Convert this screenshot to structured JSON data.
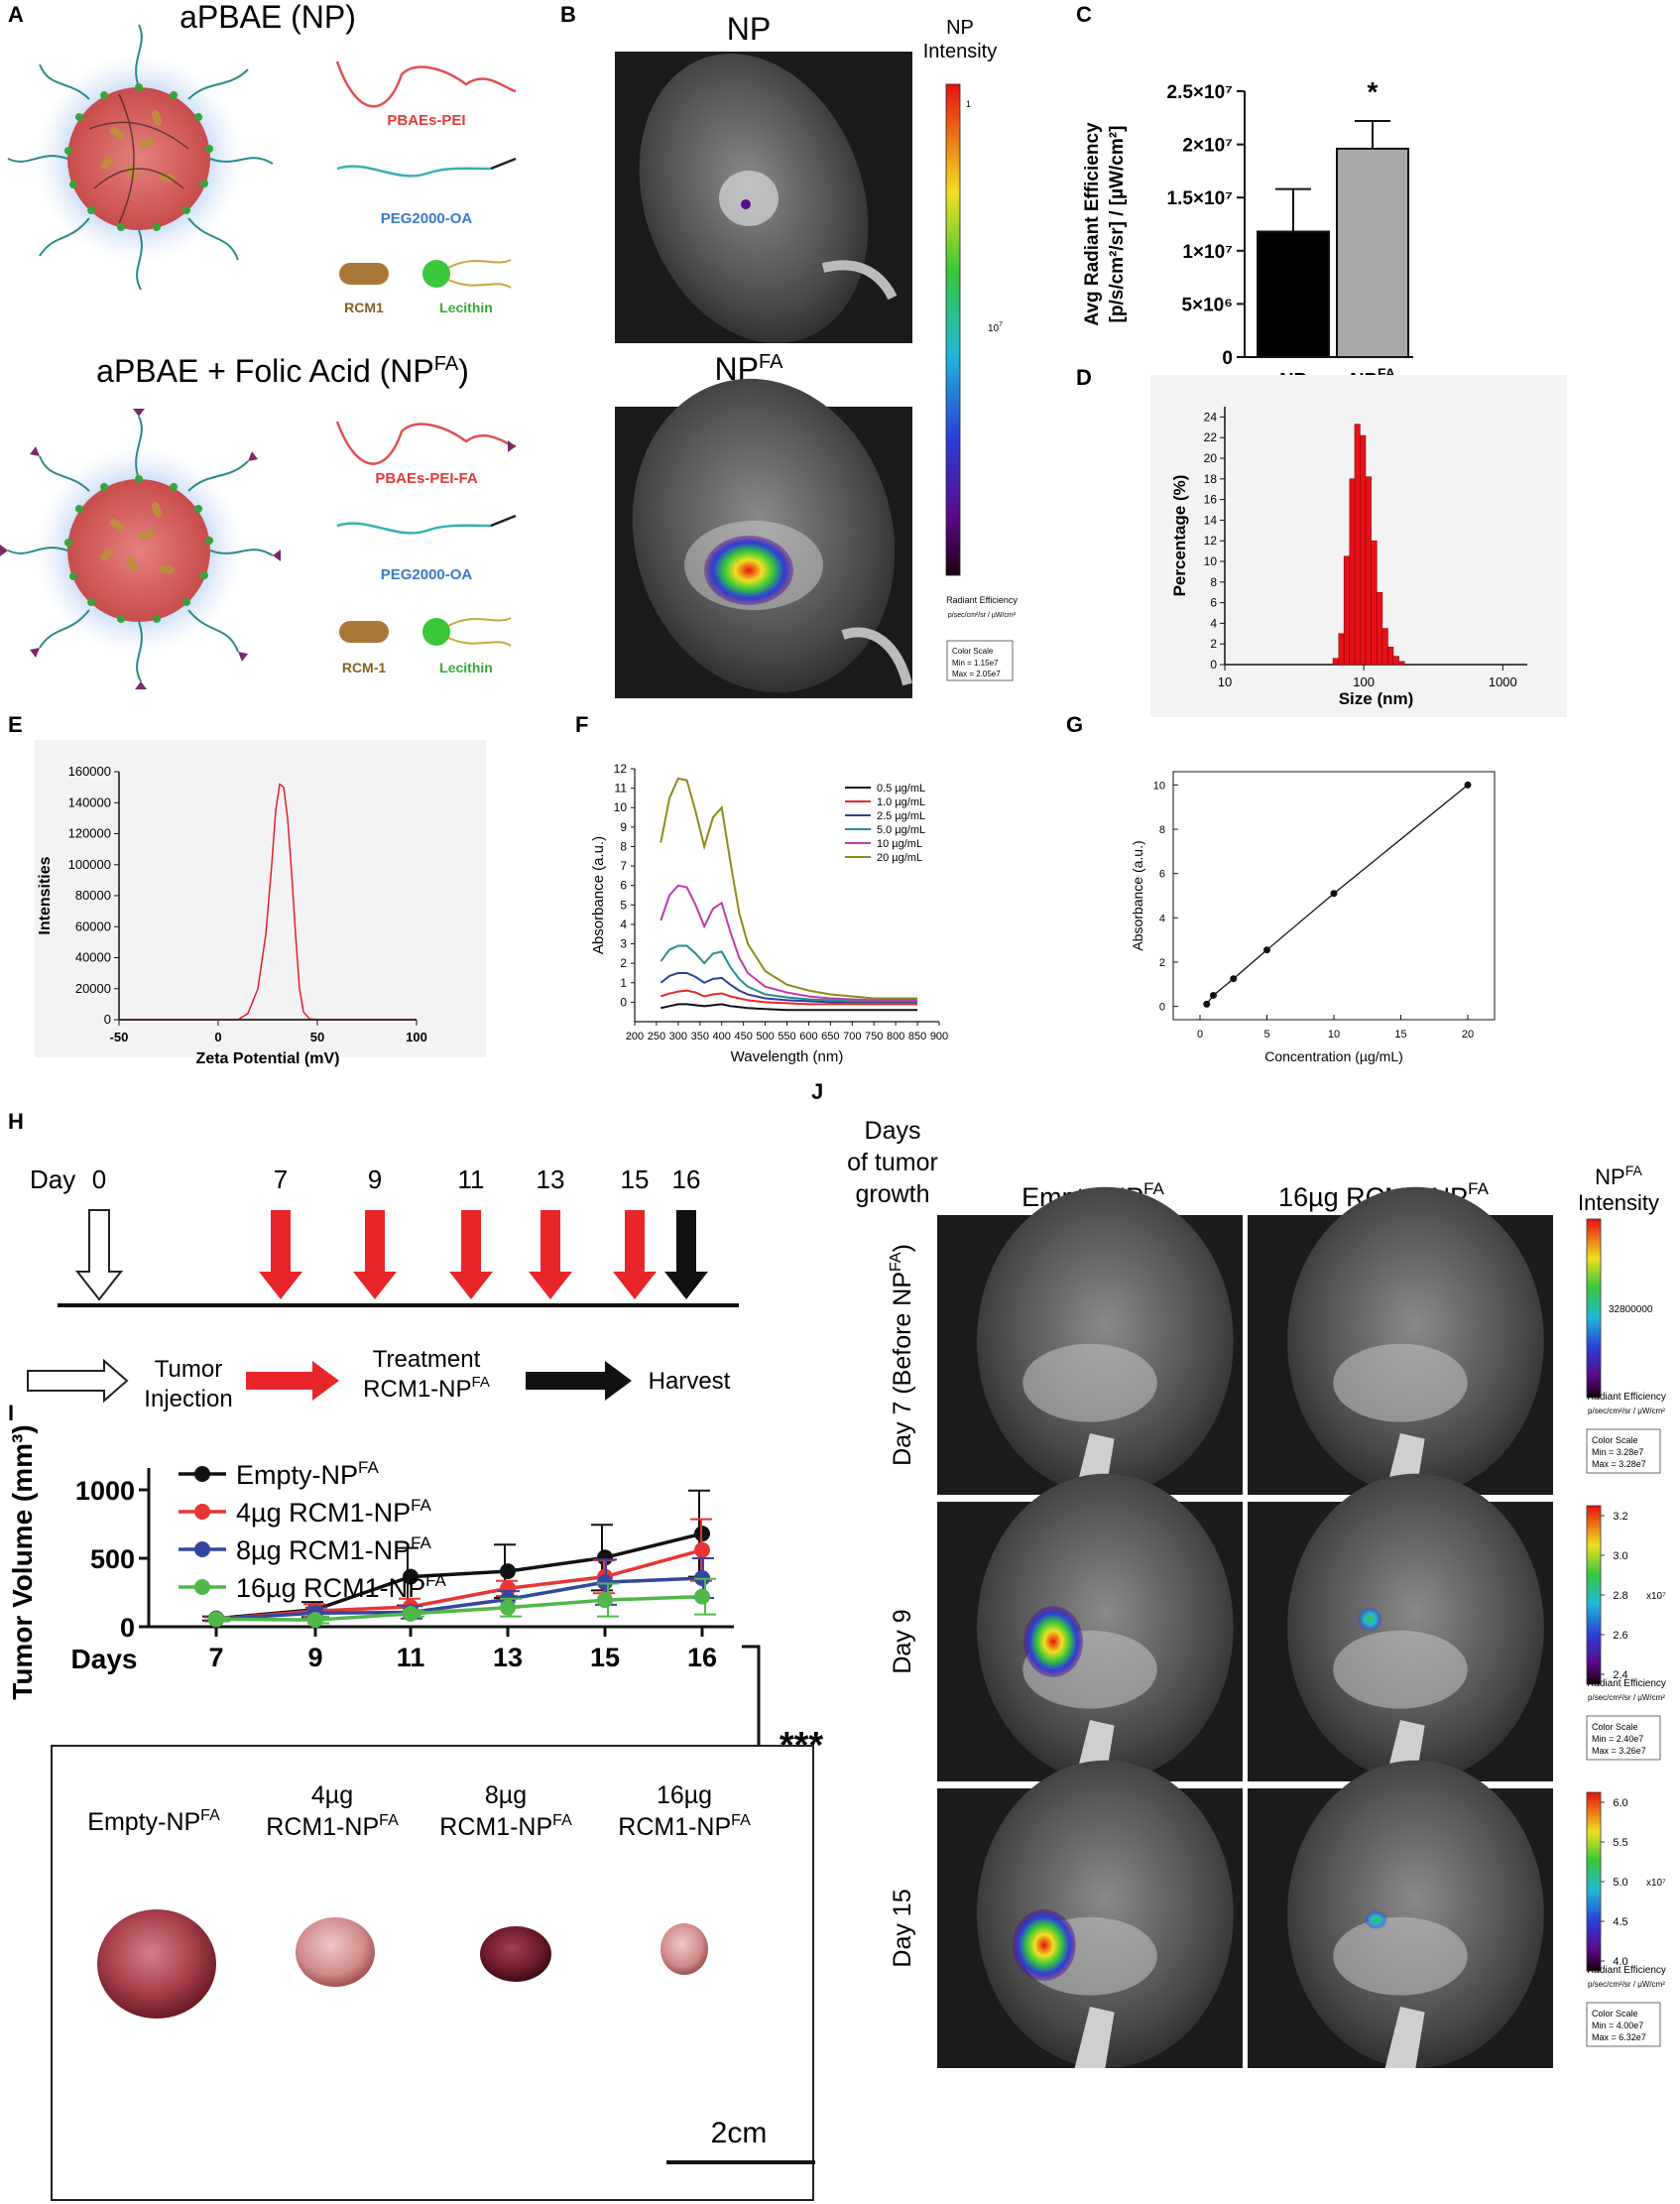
{
  "panels": {
    "A": {
      "letter": "A",
      "title_top": "aPBAE (NP)",
      "title_bottom_prefix": "aPBAE + Folic Acid (NP",
      "title_bottom_sup": "FA",
      "title_bottom_suffix": ")",
      "legend_top": [
        "PBAEs-PEI",
        "PEG2000-OA",
        "RCM1",
        "Lecithin"
      ],
      "legend_bottom": [
        "PBAEs-PEI-FA",
        "PEG2000-OA",
        "RCM-1",
        "Lecithin"
      ]
    },
    "B": {
      "letter": "B",
      "label_np": "NP",
      "label_npfa": "NP",
      "label_npfa_sup": "FA",
      "scale_title_1": "NP",
      "scale_title_2": "Intensity",
      "scale_top": "1",
      "scale_mid": "10",
      "scale_mid_sup": "7",
      "radiant_title": "Radiant Efficiency",
      "radiant_units": "p/sec/cm²/sr / µW/cm²",
      "color_scale": "Color Scale",
      "min": "Min = 1.15e7",
      "max": "Max = 2.05e7"
    },
    "C": {
      "letter": "C"
    },
    "D": {
      "letter": "D"
    },
    "E": {
      "letter": "E"
    },
    "F": {
      "letter": "F"
    },
    "G": {
      "letter": "G"
    },
    "H": {
      "letter": "H",
      "day_label": "Day",
      "days": [
        "0",
        "7",
        "9",
        "11",
        "13",
        "15",
        "16"
      ],
      "legend_tumor_1": "Tumor",
      "legend_tumor_2": "Injection",
      "legend_treat_1": "Treatment",
      "legend_treat_2": "RCM1-NP",
      "legend_treat_sup": "FA",
      "legend_harvest": "Harvest",
      "colors": {
        "treatment": "#e8262a",
        "harvest": "#111111"
      }
    },
    "I": {
      "letter": "I"
    },
    "tumors": {
      "labels": [
        {
          "l1": "Empty-NP",
          "sup": "FA",
          "l2": ""
        },
        {
          "l1": "4µg",
          "l2": "RCM1-NP",
          "sup": "FA"
        },
        {
          "l1": "8µg",
          "l2": "RCM1-NP",
          "sup": "FA"
        },
        {
          "l1": "16µg",
          "l2": "RCM1-NP",
          "sup": "FA"
        }
      ],
      "scale_bar": "2cm"
    },
    "J": {
      "letter": "J",
      "row_header_1": "Days",
      "row_header_2": "of tumor",
      "row_header_3": "growth",
      "col_1": "Empty-NP",
      "col_2": "16µg RCM1-NP",
      "col_sup": "FA",
      "scale_title_1": "NP",
      "scale_title_sup": "FA",
      "scale_title_2": "Intensity",
      "rows": [
        {
          "label": "Day 7 (Before NP",
          "label_sup": "FA",
          "label_end": ")",
          "ticks": [
            "32800000"
          ],
          "exp": "",
          "min": "Min = 3.28e7",
          "max": "Max = 3.28e7"
        },
        {
          "label": "Day 9",
          "label_sup": "",
          "label_end": "",
          "ticks": [
            "3.2",
            "3.0",
            "2.8",
            "2.6",
            "2.4"
          ],
          "exp": "x10⁷",
          "min": "Min = 2.40e7",
          "max": "Max = 3.26e7"
        },
        {
          "label": "Day 15",
          "label_sup": "",
          "label_end": "",
          "ticks": [
            "6.0",
            "5.5",
            "5.0",
            "4.5",
            "4.0"
          ],
          "exp": "x10⁷",
          "min": "Min = 4.00e7",
          "max": "Max = 6.32e7"
        }
      ],
      "radiant_title": "Radiant Efficiency",
      "radiant_units": "p/sec/cm²/sr / µW/cm²",
      "color_scale": "Color Scale"
    }
  },
  "chart_data": [
    {
      "id": "C",
      "type": "bar",
      "categories": [
        "NP",
        "NP^FA"
      ],
      "category_labels": [
        "NP",
        "NP"
      ],
      "category_sups": [
        "",
        "FA"
      ],
      "values": [
        11800000,
        19600000
      ],
      "errors": [
        4000000,
        2600000
      ],
      "colors": [
        "#000000",
        "#a9a9ab"
      ],
      "ylabel_1": "Avg Radiant Efficiency",
      "ylabel_2": "[p/s/cm²/sr] / [µW/cm²]",
      "ylim": [
        0,
        25000000
      ],
      "yticks": [
        0,
        5000000,
        10000000,
        15000000,
        20000000,
        25000000
      ],
      "ytick_labels": [
        "0",
        "5×10⁶",
        "1×10⁷",
        "1.5×10⁷",
        "2×10⁷",
        "2.5×10⁷"
      ],
      "annotation": "*"
    },
    {
      "id": "D",
      "type": "bar",
      "xscale": "log",
      "xlim": [
        10,
        1500
      ],
      "xticks": [
        10,
        100,
        1000
      ],
      "ylim": [
        0,
        25
      ],
      "yticks": [
        0,
        2,
        4,
        6,
        8,
        10,
        12,
        14,
        16,
        18,
        20,
        22,
        24
      ],
      "xlabel": "Size (nm)",
      "ylabel": "Percentage (%)",
      "color": "#e8111a",
      "bins": [
        [
          60,
          66,
          0.6
        ],
        [
          66,
          72,
          3.0
        ],
        [
          72,
          79,
          10.5
        ],
        [
          79,
          86,
          18.0
        ],
        [
          86,
          94,
          23.3
        ],
        [
          94,
          103,
          22.2
        ],
        [
          103,
          113,
          18.2
        ],
        [
          113,
          124,
          12.0
        ],
        [
          124,
          136,
          7.0
        ],
        [
          136,
          149,
          3.5
        ],
        [
          149,
          163,
          1.7
        ],
        [
          163,
          179,
          0.8
        ],
        [
          179,
          196,
          0.3
        ]
      ]
    },
    {
      "id": "E",
      "type": "line",
      "xlim": [
        -50,
        100
      ],
      "ylim": [
        0,
        160000
      ],
      "xticks": [
        -50,
        0,
        50,
        100
      ],
      "yticks": [
        0,
        20000,
        40000,
        60000,
        80000,
        100000,
        120000,
        140000,
        160000
      ],
      "xlabel": "Zeta Potential (mV)",
      "ylabel": "Intensities",
      "series": [
        {
          "color": "#e8111a",
          "x": [
            -50,
            10,
            15,
            20,
            24,
            27,
            29,
            31,
            33,
            35,
            37,
            39,
            41,
            43,
            46,
            50,
            55,
            100
          ],
          "y": [
            0,
            0,
            4000,
            20000,
            55000,
            100000,
            135000,
            152000,
            150000,
            130000,
            95000,
            55000,
            20000,
            5000,
            600,
            0,
            0,
            0
          ]
        },
        {
          "color": "#222222",
          "x": [
            -50,
            100
          ],
          "y": [
            0,
            0
          ]
        }
      ]
    },
    {
      "id": "F",
      "type": "line",
      "xlim": [
        200,
        900
      ],
      "ylim": [
        -1,
        12
      ],
      "xticks": [
        200,
        250,
        300,
        350,
        400,
        450,
        500,
        550,
        600,
        650,
        700,
        750,
        800,
        850,
        900
      ],
      "yticks": [
        0,
        1,
        2,
        3,
        4,
        5,
        6,
        7,
        8,
        9,
        10,
        11,
        12
      ],
      "xlabel": "Wavelength (nm)",
      "ylabel": "Absorbance (a.u.)",
      "x": [
        260,
        280,
        300,
        320,
        340,
        360,
        380,
        400,
        420,
        440,
        460,
        500,
        550,
        600,
        650,
        700,
        750,
        800,
        850
      ],
      "series": [
        {
          "name": "0.5 µg/mL",
          "color": "#111111",
          "y": [
            -0.3,
            -0.2,
            -0.1,
            -0.1,
            -0.15,
            -0.2,
            -0.15,
            -0.1,
            -0.2,
            -0.25,
            -0.3,
            -0.35,
            -0.4,
            -0.4,
            -0.4,
            -0.4,
            -0.4,
            -0.4,
            -0.4
          ]
        },
        {
          "name": "1.0 µg/mL",
          "color": "#e8262a",
          "y": [
            0.3,
            0.45,
            0.55,
            0.6,
            0.5,
            0.3,
            0.4,
            0.45,
            0.3,
            0.2,
            0.1,
            0.0,
            -0.05,
            -0.1,
            -0.1,
            -0.1,
            -0.1,
            -0.1,
            -0.1
          ]
        },
        {
          "name": "2.5 µg/mL",
          "color": "#2e3f97",
          "y": [
            1.0,
            1.35,
            1.5,
            1.5,
            1.3,
            1.0,
            1.2,
            1.25,
            0.9,
            0.6,
            0.4,
            0.2,
            0.1,
            0.05,
            0.0,
            0.0,
            0.0,
            0.0,
            0.0
          ]
        },
        {
          "name": "5.0 µg/mL",
          "color": "#2a8a8f",
          "y": [
            2.1,
            2.7,
            2.9,
            2.9,
            2.5,
            2.0,
            2.5,
            2.6,
            1.8,
            1.2,
            0.8,
            0.4,
            0.25,
            0.15,
            0.1,
            0.05,
            0.05,
            0.05,
            0.05
          ]
        },
        {
          "name": "10 µg/mL",
          "color": "#c03ab0",
          "y": [
            4.2,
            5.5,
            6.0,
            5.9,
            5.0,
            3.9,
            4.8,
            5.1,
            3.6,
            2.3,
            1.5,
            0.8,
            0.5,
            0.3,
            0.2,
            0.15,
            0.1,
            0.1,
            0.1
          ]
        },
        {
          "name": "20 µg/mL",
          "color": "#8c8b18",
          "y": [
            8.2,
            10.5,
            11.5,
            11.4,
            9.8,
            8.0,
            9.5,
            10.0,
            7.2,
            4.6,
            3.0,
            1.6,
            0.9,
            0.6,
            0.4,
            0.3,
            0.2,
            0.2,
            0.2
          ]
        }
      ]
    },
    {
      "id": "G",
      "type": "scatter",
      "xlim": [
        -2,
        22
      ],
      "ylim": [
        -0.6,
        10.6
      ],
      "xticks": [
        0,
        5,
        10,
        15,
        20
      ],
      "yticks": [
        0,
        2,
        4,
        6,
        8,
        10
      ],
      "xlabel": "Concentration (µg/mL)",
      "ylabel": "Absorbance (a.u.)",
      "x": [
        0.5,
        1.0,
        2.5,
        5.0,
        10,
        20
      ],
      "y": [
        0.1,
        0.5,
        1.25,
        2.55,
        5.1,
        10.0
      ]
    },
    {
      "id": "I",
      "type": "line",
      "categories": [
        "7",
        "9",
        "11",
        "13",
        "15",
        "16"
      ],
      "ylim": [
        0,
        1100
      ],
      "yticks": [
        0,
        500,
        1000
      ],
      "xlabel": "Days",
      "ylabel": "Tumor Volume (mm³)",
      "annotation": "***",
      "series": [
        {
          "name": "Empty-NP",
          "sup": "FA",
          "color": "#111111",
          "values": [
            60,
            125,
            365,
            405,
            505,
            680
          ],
          "errors": [
            15,
            55,
            210,
            195,
            240,
            315
          ]
        },
        {
          "name": "4µg RCM1-NP",
          "sup": "FA",
          "color": "#e83535",
          "values": [
            55,
            115,
            145,
            280,
            365,
            560
          ],
          "errors": [
            15,
            50,
            60,
            55,
            120,
            225
          ]
        },
        {
          "name": "8µg RCM1-NP",
          "sup": "FA",
          "color": "#3446a0",
          "values": [
            55,
            100,
            105,
            200,
            325,
            355
          ],
          "errors": [
            15,
            40,
            45,
            60,
            165,
            145
          ]
        },
        {
          "name": "16µg RCM1-NP",
          "sup": "FA",
          "color": "#4fb848",
          "values": [
            55,
            50,
            95,
            140,
            195,
            220
          ],
          "errors": [
            15,
            25,
            20,
            65,
            120,
            130
          ]
        }
      ]
    }
  ]
}
